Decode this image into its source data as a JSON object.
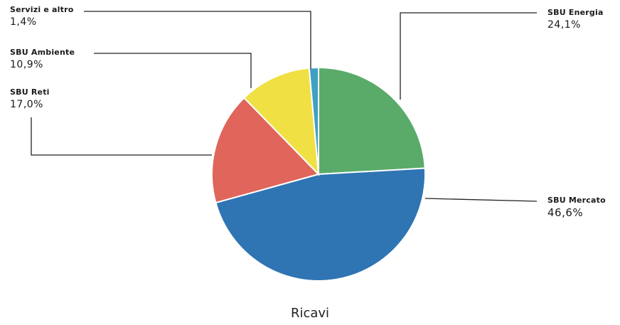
{
  "chart_data": {
    "type": "pie",
    "title": "Ricavi",
    "slices": [
      {
        "label": "SBU Energia",
        "value": 24.1,
        "display": "24,1%",
        "color": "#5aab6a"
      },
      {
        "label": "SBU Mercato",
        "value": 46.6,
        "display": "46,6%",
        "color": "#2f74b3"
      },
      {
        "label": "SBU Reti",
        "value": 17.0,
        "display": "17,0%",
        "color": "#e0655a"
      },
      {
        "label": "SBU Ambiente",
        "value": 10.9,
        "display": "10,9%",
        "color": "#f1e044"
      },
      {
        "label": "Servizi e altro",
        "value": 1.4,
        "display": "1,4%",
        "color": "#3fa0c4"
      }
    ],
    "start_at": "top",
    "direction": "clockwise",
    "legend_placement": "callout labels"
  }
}
